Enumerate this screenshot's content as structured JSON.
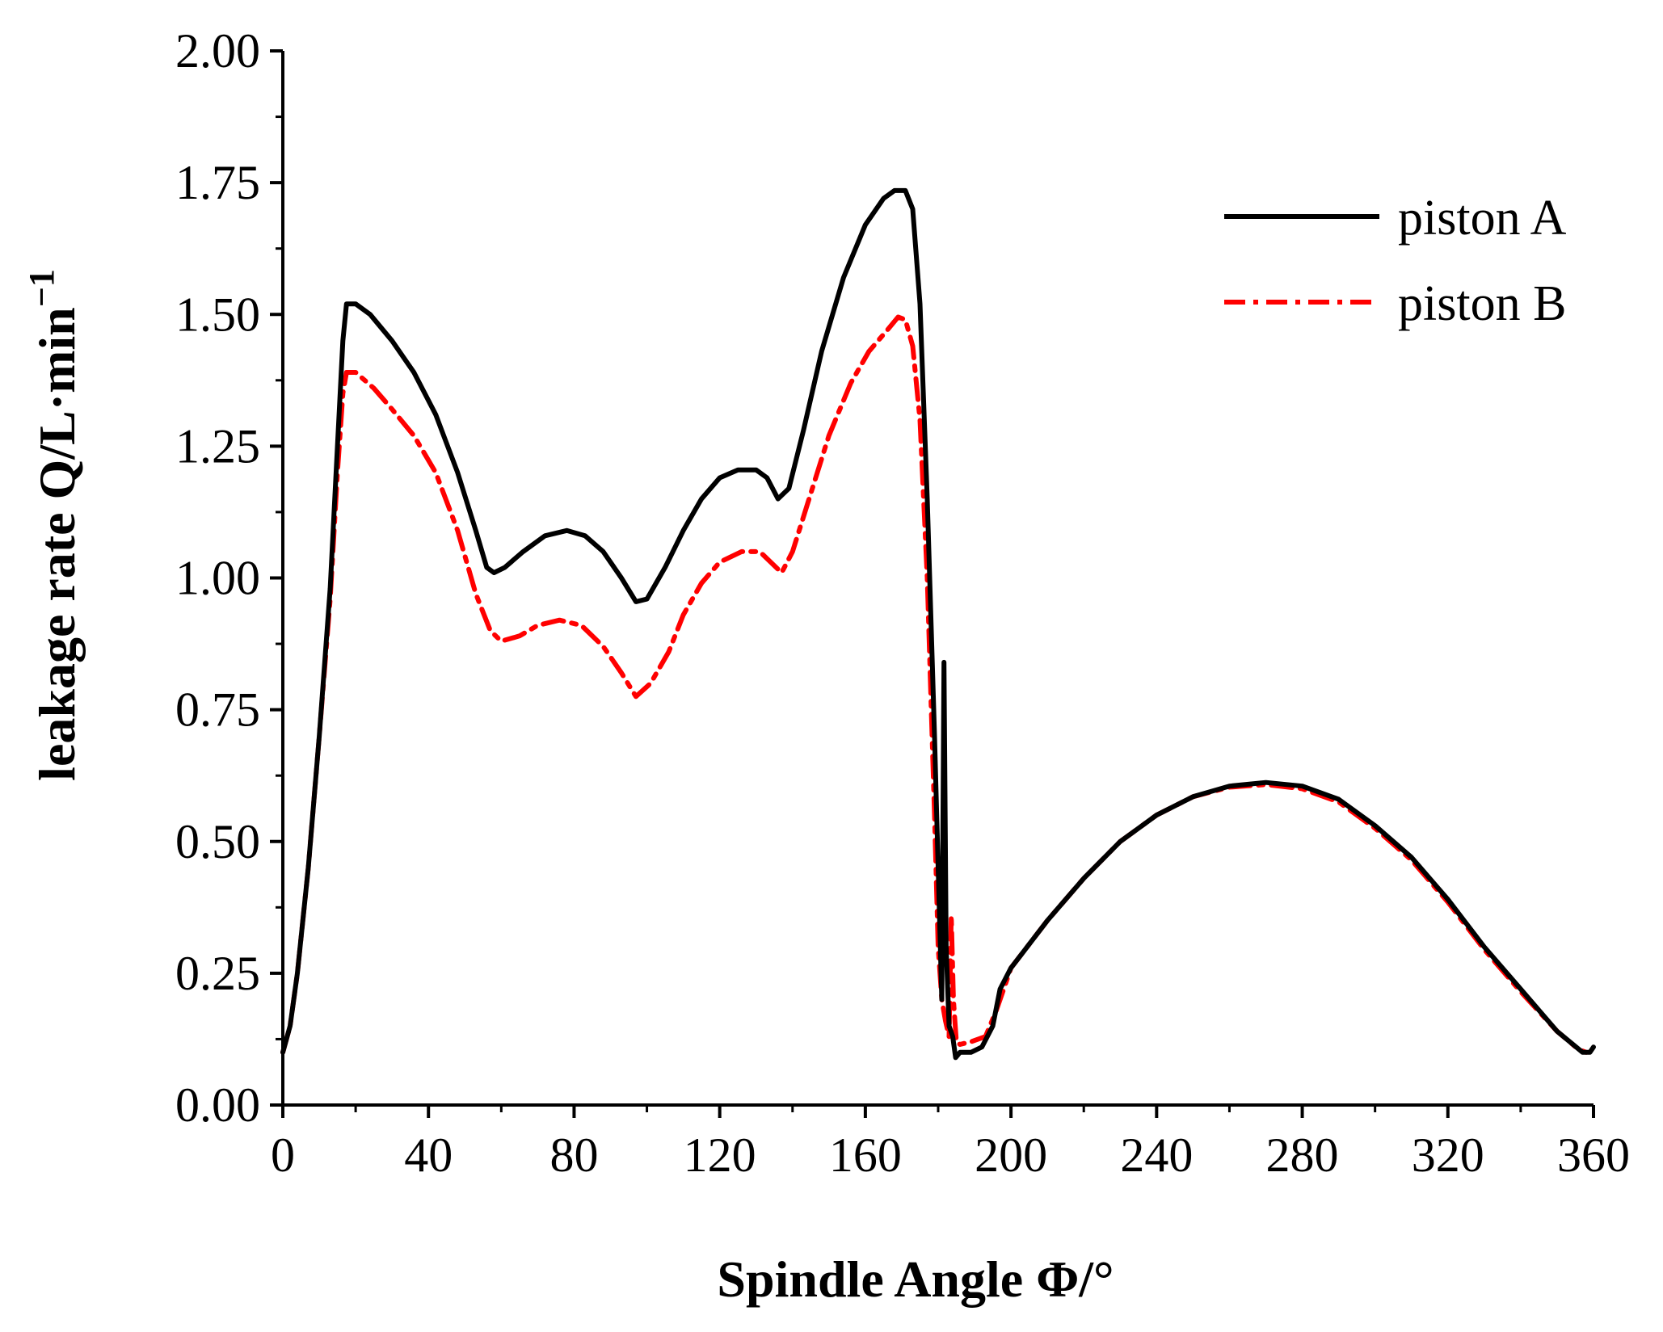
{
  "chart_data": {
    "type": "line",
    "title": "",
    "xlabel": "Spindle Angle Φ/°",
    "ylabel": "leakage rate Q/L·min",
    "ylabel_superscript": "−1",
    "xlim": [
      0,
      360
    ],
    "ylim": [
      0,
      2
    ],
    "xticks": [
      0,
      40,
      80,
      120,
      160,
      200,
      240,
      280,
      320,
      360
    ],
    "yticks": [
      0,
      0.25,
      0.5,
      0.75,
      1.0,
      1.25,
      1.5,
      1.75,
      2.0
    ],
    "xtick_labels": [
      "0",
      "40",
      "80",
      "120",
      "160",
      "200",
      "240",
      "280",
      "320",
      "360"
    ],
    "ytick_labels": [
      "0.00",
      "0.25",
      "0.50",
      "0.75",
      "1.00",
      "1.25",
      "1.50",
      "1.75",
      "2.00"
    ],
    "grid": false,
    "legend_position": "top-right",
    "series": [
      {
        "name": "piston A",
        "color": "#000000",
        "style": "solid",
        "points": [
          [
            0,
            0.1
          ],
          [
            2,
            0.15
          ],
          [
            4,
            0.25
          ],
          [
            7,
            0.45
          ],
          [
            10,
            0.7
          ],
          [
            13,
            0.98
          ],
          [
            15,
            1.25
          ],
          [
            16.5,
            1.45
          ],
          [
            17.5,
            1.52
          ],
          [
            20,
            1.52
          ],
          [
            24,
            1.5
          ],
          [
            30,
            1.45
          ],
          [
            36,
            1.39
          ],
          [
            42,
            1.31
          ],
          [
            48,
            1.2
          ],
          [
            53,
            1.09
          ],
          [
            56,
            1.02
          ],
          [
            58,
            1.01
          ],
          [
            61,
            1.02
          ],
          [
            66,
            1.05
          ],
          [
            72,
            1.08
          ],
          [
            78,
            1.09
          ],
          [
            83,
            1.08
          ],
          [
            88,
            1.05
          ],
          [
            93,
            1.0
          ],
          [
            97,
            0.955
          ],
          [
            100,
            0.96
          ],
          [
            105,
            1.02
          ],
          [
            110,
            1.09
          ],
          [
            115,
            1.15
          ],
          [
            120,
            1.19
          ],
          [
            125,
            1.205
          ],
          [
            130,
            1.205
          ],
          [
            133,
            1.19
          ],
          [
            136,
            1.15
          ],
          [
            139,
            1.17
          ],
          [
            143,
            1.28
          ],
          [
            148,
            1.43
          ],
          [
            154,
            1.57
          ],
          [
            160,
            1.67
          ],
          [
            165,
            1.72
          ],
          [
            168,
            1.735
          ],
          [
            171,
            1.735
          ],
          [
            173,
            1.7
          ],
          [
            175,
            1.52
          ],
          [
            177,
            1.15
          ],
          [
            179,
            0.7
          ],
          [
            180,
            0.45
          ],
          [
            181,
            0.2
          ],
          [
            181.6,
            0.84
          ],
          [
            182.2,
            0.3
          ],
          [
            183,
            0.15
          ],
          [
            184,
            0.13
          ],
          [
            184.8,
            0.09
          ],
          [
            186,
            0.1
          ],
          [
            189,
            0.1
          ],
          [
            192,
            0.11
          ],
          [
            195,
            0.15
          ],
          [
            197,
            0.22
          ],
          [
            200,
            0.26
          ],
          [
            210,
            0.35
          ],
          [
            220,
            0.43
          ],
          [
            230,
            0.5
          ],
          [
            240,
            0.55
          ],
          [
            250,
            0.585
          ],
          [
            260,
            0.605
          ],
          [
            270,
            0.612
          ],
          [
            280,
            0.605
          ],
          [
            290,
            0.58
          ],
          [
            300,
            0.53
          ],
          [
            310,
            0.47
          ],
          [
            320,
            0.39
          ],
          [
            330,
            0.3
          ],
          [
            340,
            0.22
          ],
          [
            350,
            0.14
          ],
          [
            357,
            0.1
          ],
          [
            359,
            0.1
          ],
          [
            360,
            0.11
          ]
        ]
      },
      {
        "name": "piston B",
        "color": "#ff0000",
        "style": "dash-dot",
        "points": [
          [
            0,
            0.1
          ],
          [
            2,
            0.15
          ],
          [
            4,
            0.25
          ],
          [
            7,
            0.45
          ],
          [
            10,
            0.7
          ],
          [
            13,
            0.96
          ],
          [
            15,
            1.2
          ],
          [
            16.5,
            1.35
          ],
          [
            17.5,
            1.39
          ],
          [
            20,
            1.39
          ],
          [
            25,
            1.36
          ],
          [
            30,
            1.32
          ],
          [
            36,
            1.27
          ],
          [
            42,
            1.2
          ],
          [
            48,
            1.09
          ],
          [
            53,
            0.97
          ],
          [
            57,
            0.9
          ],
          [
            60,
            0.88
          ],
          [
            65,
            0.89
          ],
          [
            70,
            0.91
          ],
          [
            76,
            0.92
          ],
          [
            82,
            0.91
          ],
          [
            88,
            0.87
          ],
          [
            93,
            0.82
          ],
          [
            97,
            0.775
          ],
          [
            101,
            0.8
          ],
          [
            106,
            0.86
          ],
          [
            110,
            0.93
          ],
          [
            115,
            0.99
          ],
          [
            120,
            1.03
          ],
          [
            126,
            1.05
          ],
          [
            131,
            1.05
          ],
          [
            134,
            1.03
          ],
          [
            137,
            1.01
          ],
          [
            140,
            1.05
          ],
          [
            145,
            1.16
          ],
          [
            150,
            1.27
          ],
          [
            156,
            1.37
          ],
          [
            161,
            1.43
          ],
          [
            166,
            1.47
          ],
          [
            169,
            1.495
          ],
          [
            171,
            1.49
          ],
          [
            173,
            1.44
          ],
          [
            175,
            1.3
          ],
          [
            177,
            1.0
          ],
          [
            179,
            0.55
          ],
          [
            180,
            0.3
          ],
          [
            181,
            0.2
          ],
          [
            182,
            0.16
          ],
          [
            183,
            0.13
          ],
          [
            183.6,
            0.36
          ],
          [
            184.2,
            0.2
          ],
          [
            185,
            0.12
          ],
          [
            186,
            0.115
          ],
          [
            189,
            0.12
          ],
          [
            193,
            0.13
          ],
          [
            196,
            0.18
          ],
          [
            198,
            0.22
          ],
          [
            200,
            0.26
          ],
          [
            210,
            0.35
          ],
          [
            220,
            0.43
          ],
          [
            230,
            0.5
          ],
          [
            240,
            0.55
          ],
          [
            250,
            0.585
          ],
          [
            260,
            0.603
          ],
          [
            270,
            0.608
          ],
          [
            280,
            0.6
          ],
          [
            290,
            0.575
          ],
          [
            300,
            0.525
          ],
          [
            310,
            0.465
          ],
          [
            320,
            0.385
          ],
          [
            330,
            0.295
          ],
          [
            340,
            0.215
          ],
          [
            350,
            0.14
          ],
          [
            356,
            0.105
          ],
          [
            358,
            0.1
          ]
        ]
      }
    ]
  }
}
